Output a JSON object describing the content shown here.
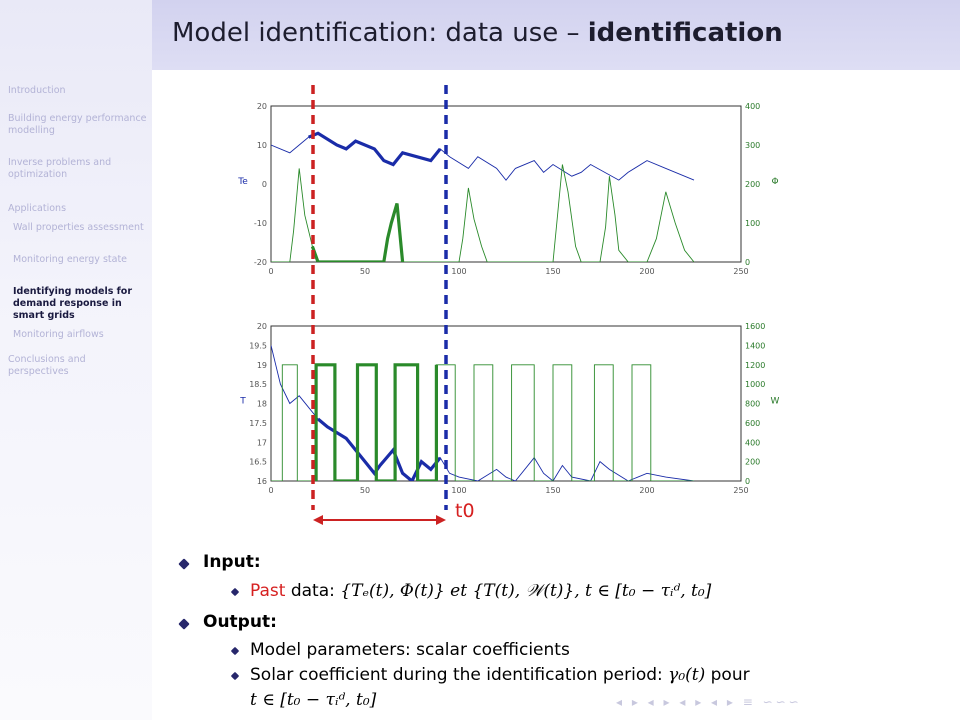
{
  "title": {
    "normal": "Model identification: data use – ",
    "bold": "identification"
  },
  "sidebar": {
    "items": [
      {
        "label": "Introduction",
        "level": 0,
        "active": false
      },
      {
        "label": "Building energy performance modelling",
        "level": 0,
        "active": false
      },
      {
        "label": "Inverse problems and optimization",
        "level": 0,
        "active": false
      },
      {
        "label": "Applications",
        "level": 0,
        "active": false
      },
      {
        "label": "Wall properties assessment",
        "level": 1,
        "active": false
      },
      {
        "label": "Monitoring energy state",
        "level": 1,
        "active": false
      },
      {
        "label": "Identifying models for demand response in smart grids",
        "level": 1,
        "active": true
      },
      {
        "label": "Monitoring airflows",
        "level": 1,
        "active": false
      },
      {
        "label": "Conclusions and perspectives",
        "level": 0,
        "active": false
      }
    ]
  },
  "chart_data": [
    {
      "type": "line",
      "ylabel": "Te",
      "ylabel_right": "Φ",
      "xlim": [
        0,
        250
      ],
      "ylim": [
        -20,
        20
      ],
      "ylim_right": [
        0,
        400
      ],
      "x_ticks": [
        "0",
        "50",
        "100",
        "150",
        "200",
        "250"
      ],
      "y_ticks": [
        "-20",
        "-10",
        "0",
        "10",
        "20"
      ],
      "y_ticks_right": [
        "0",
        "100",
        "200",
        "300",
        "400"
      ],
      "series": [
        {
          "color": "#1a2ca8",
          "axis": "left",
          "x": [
            0,
            10,
            15,
            20,
            25,
            35,
            40,
            45,
            55,
            60,
            65,
            70,
            85,
            90,
            95,
            105,
            110,
            120,
            125,
            130,
            140,
            145,
            150,
            160,
            165,
            170,
            185,
            190,
            200,
            210,
            225
          ],
          "y": [
            10,
            8,
            10,
            12,
            13,
            10,
            9,
            11,
            9,
            6,
            5,
            8,
            6,
            9,
            7,
            4,
            7,
            4,
            1,
            4,
            6,
            3,
            5,
            2,
            3,
            5,
            1,
            3,
            6,
            4,
            1
          ]
        },
        {
          "color": "#2a8a2a",
          "axis": "right",
          "x": [
            0,
            10,
            12,
            15,
            18,
            22,
            25,
            60,
            62,
            64,
            67,
            70,
            100,
            102,
            105,
            108,
            112,
            115,
            150,
            152,
            155,
            158,
            162,
            165,
            175,
            178,
            180,
            183,
            185,
            190,
            200,
            205,
            210,
            215,
            220,
            225
          ],
          "y": [
            0,
            0,
            80,
            240,
            120,
            40,
            0,
            0,
            60,
            100,
            150,
            0,
            0,
            60,
            190,
            110,
            40,
            0,
            0,
            100,
            250,
            180,
            40,
            0,
            0,
            90,
            220,
            120,
            30,
            0,
            0,
            60,
            180,
            100,
            30,
            0
          ]
        }
      ]
    },
    {
      "type": "line",
      "ylabel": "T",
      "ylabel_right": "W",
      "xlim": [
        0,
        250
      ],
      "ylim": [
        16,
        20
      ],
      "ylim_right": [
        0,
        1600
      ],
      "x_ticks": [
        "0",
        "50",
        "100",
        "150",
        "200",
        "250"
      ],
      "y_ticks": [
        "16",
        "16.5",
        "17",
        "17.5",
        "18",
        "18.5",
        "19",
        "19.5",
        "20"
      ],
      "y_ticks_right": [
        "0",
        "200",
        "400",
        "600",
        "800",
        "1000",
        "1200",
        "1400",
        "1600"
      ],
      "series": [
        {
          "color": "#1a2ca8",
          "axis": "left",
          "x": [
            0,
            5,
            10,
            15,
            25,
            30,
            40,
            45,
            50,
            55,
            58,
            65,
            70,
            75,
            80,
            85,
            90,
            95,
            100,
            110,
            120,
            125,
            130,
            140,
            145,
            150,
            155,
            160,
            170,
            175,
            180,
            190,
            200,
            210,
            225
          ],
          "y": [
            19.5,
            18.5,
            18.0,
            18.2,
            17.6,
            17.4,
            17.1,
            16.8,
            16.5,
            16.2,
            16.4,
            16.8,
            16.2,
            16.0,
            16.5,
            16.3,
            16.6,
            16.2,
            16.1,
            16.0,
            16.3,
            16.1,
            16.0,
            16.6,
            16.2,
            16.0,
            16.4,
            16.1,
            16.0,
            16.5,
            16.3,
            16.0,
            16.2,
            16.1,
            16.0
          ]
        },
        {
          "color": "#2a8a2a",
          "axis": "right",
          "x": [
            0,
            6,
            6,
            14,
            14,
            24,
            24,
            34,
            34,
            46,
            46,
            56,
            56,
            66,
            66,
            78,
            78,
            88,
            88,
            98,
            98,
            108,
            108,
            118,
            118,
            128,
            128,
            140,
            140,
            150,
            150,
            160,
            160,
            172,
            172,
            182,
            182,
            192,
            192,
            202,
            202,
            225
          ],
          "y": [
            0,
            0,
            1200,
            1200,
            0,
            0,
            1200,
            1200,
            0,
            0,
            1200,
            1200,
            0,
            0,
            1200,
            1200,
            0,
            0,
            1200,
            1200,
            0,
            0,
            1200,
            1200,
            0,
            0,
            1200,
            1200,
            0,
            0,
            1200,
            1200,
            0,
            0,
            1200,
            1200,
            0,
            0,
            1200,
            1200,
            0,
            0
          ]
        }
      ]
    }
  ],
  "t0_label": "t0",
  "content": {
    "input_heading": "Input:",
    "past_word": "Past",
    "past_rest": " data: ",
    "past_math": "{Tₑ(t), Φ(t)} et {T(t), 𝒲(t)}, t ∈ [t₀ − τᵢᵈ, t₀]",
    "output_heading": "Output:",
    "output_item1": "Model parameters: scalar coefficients",
    "output_item2": "Solar coefficient during the identification period: ",
    "output_item2_math": "γ₀(t)",
    "output_item2_tail": " pour",
    "output_item3_math": "t ∈ [t₀ − τᵢᵈ, t₀]"
  },
  "nav_symbols": "◂ ▸ ◂ ▸ ◂ ▸ ◂ ▸ ≡ ∽∽∽"
}
